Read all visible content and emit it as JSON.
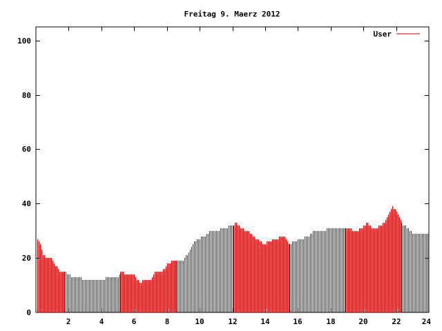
{
  "chart_data": {
    "type": "bar",
    "title": "Freitag 9. Maerz 2012",
    "xlabel": "",
    "ylabel": "",
    "xlim": [
      0,
      24
    ],
    "ylim": [
      0,
      105
    ],
    "x_ticks": [
      2,
      4,
      6,
      8,
      10,
      12,
      14,
      16,
      18,
      20,
      22,
      24
    ],
    "y_ticks": [
      0,
      20,
      40,
      60,
      80,
      100
    ],
    "grid": false,
    "legend_position": "top-right",
    "series": [
      {
        "name": "User",
        "color": "#cc0000",
        "anchors": [
          [
            0.0,
            28
          ],
          [
            0.2,
            26
          ],
          [
            0.4,
            21
          ],
          [
            0.6,
            20
          ],
          [
            0.9,
            20
          ],
          [
            1.2,
            17
          ],
          [
            1.4,
            15
          ],
          [
            1.8,
            15
          ],
          [
            2.0,
            14
          ],
          [
            2.2,
            13
          ],
          [
            2.6,
            13
          ],
          [
            3.0,
            12
          ],
          [
            4.0,
            12
          ],
          [
            4.5,
            13
          ],
          [
            5.0,
            13
          ],
          [
            5.2,
            15
          ],
          [
            5.5,
            14
          ],
          [
            6.0,
            14
          ],
          [
            6.3,
            11
          ],
          [
            6.6,
            12
          ],
          [
            7.0,
            12
          ],
          [
            7.2,
            15
          ],
          [
            7.6,
            15
          ],
          [
            7.8,
            16
          ],
          [
            8.0,
            18
          ],
          [
            8.4,
            19
          ],
          [
            9.0,
            19
          ],
          [
            9.3,
            22
          ],
          [
            9.6,
            25
          ],
          [
            9.8,
            27
          ],
          [
            10.3,
            28
          ],
          [
            10.6,
            30
          ],
          [
            11.0,
            30
          ],
          [
            11.5,
            31
          ],
          [
            12.0,
            32
          ],
          [
            12.2,
            33
          ],
          [
            12.5,
            31
          ],
          [
            13.0,
            30
          ],
          [
            13.5,
            27
          ],
          [
            13.9,
            25
          ],
          [
            14.2,
            26
          ],
          [
            14.6,
            27
          ],
          [
            15.0,
            28
          ],
          [
            15.2,
            28
          ],
          [
            15.4,
            25
          ],
          [
            15.8,
            26
          ],
          [
            16.2,
            27
          ],
          [
            16.6,
            28
          ],
          [
            17.0,
            30
          ],
          [
            17.5,
            30
          ],
          [
            18.0,
            31
          ],
          [
            19.0,
            31
          ],
          [
            19.5,
            30
          ],
          [
            19.9,
            31
          ],
          [
            20.2,
            33
          ],
          [
            20.5,
            31
          ],
          [
            20.8,
            31
          ],
          [
            21.2,
            33
          ],
          [
            21.5,
            36
          ],
          [
            21.7,
            39
          ],
          [
            22.0,
            37
          ],
          [
            22.3,
            33
          ],
          [
            22.7,
            31
          ],
          [
            23.0,
            29
          ],
          [
            24.0,
            29
          ]
        ]
      }
    ]
  }
}
